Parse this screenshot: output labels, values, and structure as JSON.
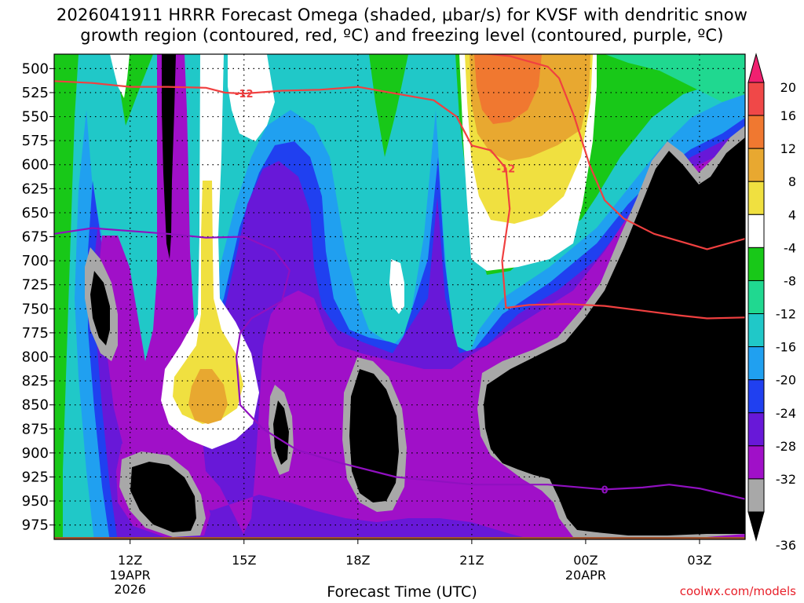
{
  "title": {
    "line1": "2026041911 HRRR Forecast Omega (shaded, μbar/s) for KVSF with dendritic snow",
    "line2": "growth region (contoured, red, ºC) and freezing level (contoured, purple, ºC)"
  },
  "credit": "coolwx.com/models",
  "chart_data": {
    "type": "heatmap",
    "xlabel": "Forecast Time (UTC)",
    "xlim": [
      10.0,
      28.2
    ],
    "ylim": [
      990,
      485
    ],
    "y_ticks": [
      500,
      525,
      550,
      575,
      600,
      625,
      650,
      675,
      700,
      725,
      750,
      775,
      800,
      825,
      850,
      875,
      900,
      925,
      950,
      975
    ],
    "x_ticks": [
      {
        "x": 12,
        "label": "12Z",
        "sub": [
          "19APR",
          "2026"
        ]
      },
      {
        "x": 15,
        "label": "15Z",
        "sub": []
      },
      {
        "x": 18,
        "label": "18Z",
        "sub": []
      },
      {
        "x": 21,
        "label": "21Z",
        "sub": []
      },
      {
        "x": 24,
        "label": "00Z",
        "sub": [
          "20APR"
        ]
      },
      {
        "x": 27,
        "label": "03Z",
        "sub": []
      }
    ],
    "colorbar": {
      "labels": [
        "20",
        "16",
        "12",
        "8",
        "4",
        "-4",
        "-8",
        "-12",
        "-16",
        "-20",
        "-24",
        "-28",
        "-32",
        "-36"
      ],
      "colors": [
        "#f02070",
        "#f04848",
        "#f07830",
        "#e8a830",
        "#f0e040",
        "#ffffff",
        "#18c818",
        "#20d890",
        "#20c8c8",
        "#20a0f0",
        "#2040f0",
        "#6818d8",
        "#a010c8",
        "#a8a8a8",
        "#000000"
      ]
    },
    "freezing_level": {
      "label": "0",
      "color": "#9010c0",
      "points": [
        [
          10.0,
          672
        ],
        [
          11.0,
          666
        ],
        [
          12.0,
          669
        ],
        [
          13.0,
          672
        ],
        [
          14.0,
          676
        ],
        [
          15.0,
          675
        ],
        [
          15.8,
          689
        ],
        [
          16.2,
          710
        ],
        [
          16.0,
          742
        ],
        [
          15.2,
          760
        ],
        [
          14.9,
          775
        ],
        [
          14.8,
          800
        ],
        [
          14.9,
          850
        ],
        [
          15.5,
          875
        ],
        [
          16.4,
          897
        ],
        [
          17.5,
          910
        ],
        [
          19.0,
          925
        ],
        [
          21.0,
          933
        ],
        [
          23.0,
          933
        ],
        [
          24.5,
          938
        ],
        [
          25.5,
          936
        ],
        [
          26.2,
          933
        ],
        [
          27.0,
          937
        ],
        [
          28.2,
          948
        ]
      ]
    },
    "dendritic_zone": {
      "label": "-12",
      "color": "#f04040",
      "upper": [
        [
          10.0,
          513
        ],
        [
          11.0,
          515
        ],
        [
          12.0,
          519
        ],
        [
          13.0,
          519
        ],
        [
          14.0,
          520
        ],
        [
          14.5,
          525
        ],
        [
          15.0,
          526
        ],
        [
          16.0,
          523
        ],
        [
          17.0,
          522
        ],
        [
          18.0,
          519
        ],
        [
          19.0,
          526
        ],
        [
          20.0,
          533
        ],
        [
          20.6,
          550
        ],
        [
          21.0,
          580
        ],
        [
          21.5,
          585
        ],
        [
          21.9,
          604
        ],
        [
          22.0,
          646
        ],
        [
          21.8,
          700
        ],
        [
          21.9,
          749
        ],
        [
          22.5,
          746
        ],
        [
          23.5,
          745
        ],
        [
          24.5,
          747
        ],
        [
          25.5,
          752
        ],
        [
          26.5,
          757
        ],
        [
          27.2,
          760
        ],
        [
          28.2,
          759
        ]
      ],
      "lower": [
        [
          21.0,
          483
        ],
        [
          22.0,
          487
        ],
        [
          23.0,
          498
        ],
        [
          23.3,
          510
        ],
        [
          23.7,
          550
        ],
        [
          24.1,
          600
        ],
        [
          24.5,
          637
        ],
        [
          25.0,
          656
        ],
        [
          25.8,
          672
        ],
        [
          26.5,
          680
        ],
        [
          27.2,
          688
        ],
        [
          28.2,
          677
        ]
      ]
    }
  }
}
